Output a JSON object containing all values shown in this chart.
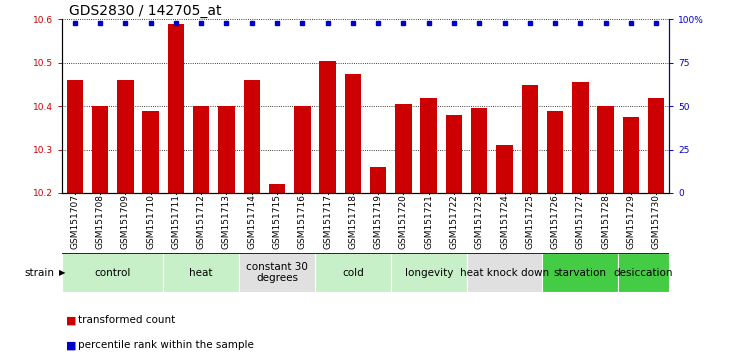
{
  "title": "GDS2830 / 142705_at",
  "samples": [
    "GSM151707",
    "GSM151708",
    "GSM151709",
    "GSM151710",
    "GSM151711",
    "GSM151712",
    "GSM151713",
    "GSM151714",
    "GSM151715",
    "GSM151716",
    "GSM151717",
    "GSM151718",
    "GSM151719",
    "GSM151720",
    "GSM151721",
    "GSM151722",
    "GSM151723",
    "GSM151724",
    "GSM151725",
    "GSM151726",
    "GSM151727",
    "GSM151728",
    "GSM151729",
    "GSM151730"
  ],
  "bar_values": [
    10.46,
    10.4,
    10.46,
    10.39,
    10.59,
    10.4,
    10.4,
    10.46,
    10.22,
    10.4,
    10.505,
    10.475,
    10.26,
    10.405,
    10.42,
    10.38,
    10.395,
    10.31,
    10.45,
    10.39,
    10.455,
    10.4,
    10.375,
    10.42
  ],
  "percentile_value": 98,
  "bar_color": "#cc0000",
  "percentile_color": "#0000cc",
  "ylim_left": [
    10.2,
    10.6
  ],
  "ylim_right": [
    0,
    100
  ],
  "yticks_left": [
    10.2,
    10.3,
    10.4,
    10.5,
    10.6
  ],
  "ytick_labels_left": [
    "10.2",
    "10.3",
    "10.4",
    "10.5",
    "10.6"
  ],
  "yticks_right": [
    0,
    25,
    50,
    75,
    100
  ],
  "ytick_labels_right": [
    "0",
    "25",
    "50",
    "75",
    "100%"
  ],
  "groups": [
    {
      "label": "control",
      "start": 0,
      "end": 3,
      "color": "#c8f0c8"
    },
    {
      "label": "heat",
      "start": 4,
      "end": 6,
      "color": "#c8f0c8"
    },
    {
      "label": "constant 30\ndegrees",
      "start": 7,
      "end": 9,
      "color": "#e0e0e0"
    },
    {
      "label": "cold",
      "start": 10,
      "end": 12,
      "color": "#c8f0c8"
    },
    {
      "label": "longevity",
      "start": 13,
      "end": 15,
      "color": "#c8f0c8"
    },
    {
      "label": "heat knock down",
      "start": 16,
      "end": 18,
      "color": "#e0e0e0"
    },
    {
      "label": "starvation",
      "start": 19,
      "end": 21,
      "color": "#44cc44"
    },
    {
      "label": "desiccation",
      "start": 22,
      "end": 23,
      "color": "#44cc44"
    }
  ],
  "strain_label": "strain",
  "legend_items": [
    {
      "label": "transformed count",
      "color": "#cc0000"
    },
    {
      "label": "percentile rank within the sample",
      "color": "#0000cc"
    }
  ],
  "bar_width": 0.65,
  "title_fontsize": 10,
  "tick_fontsize": 6.5,
  "group_label_fontsize": 7.5
}
